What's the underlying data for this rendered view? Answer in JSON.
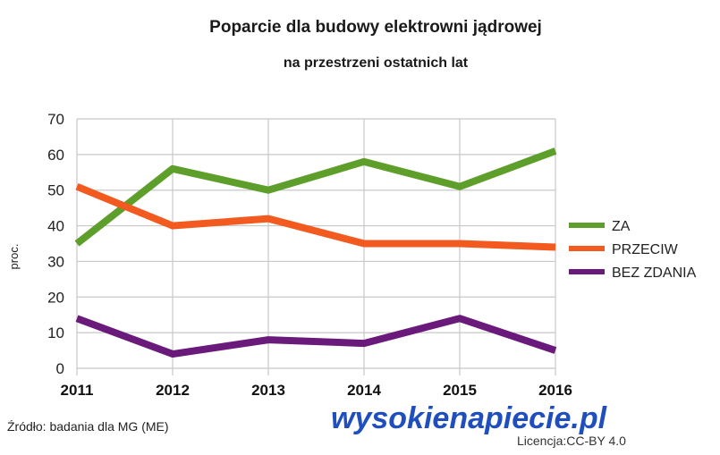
{
  "chart_data": {
    "type": "line",
    "title": "Poparcie dla budowy elektrowni jądrowej",
    "subtitle": "na przestrzeni ostatnich lat",
    "ylabel": "proc.",
    "xlabel": "",
    "x": [
      "2011",
      "2012",
      "2013",
      "2014",
      "2015",
      "2016"
    ],
    "ylim": [
      0,
      70
    ],
    "yticks": [
      0,
      10,
      20,
      30,
      40,
      50,
      60,
      70
    ],
    "grid": true,
    "legend_position": "right",
    "series": [
      {
        "name": "ZA",
        "color": "#5e9e2a",
        "values": [
          35,
          56,
          50,
          58,
          51,
          61
        ]
      },
      {
        "name": "PRZECIW",
        "color": "#f25a1f",
        "values": [
          51,
          40,
          42,
          35,
          35,
          34
        ]
      },
      {
        "name": "BEZ ZDANIA",
        "color": "#6a1a7a",
        "values": [
          14,
          4,
          8,
          7,
          14,
          5
        ]
      }
    ]
  },
  "source": "Źródło: badania dla MG (ME)",
  "brand": {
    "part1": "wysokie",
    "part2": "napiecie.pl",
    "color": "#1f4fbf"
  },
  "license": "Licencja:CC-BY 4.0"
}
